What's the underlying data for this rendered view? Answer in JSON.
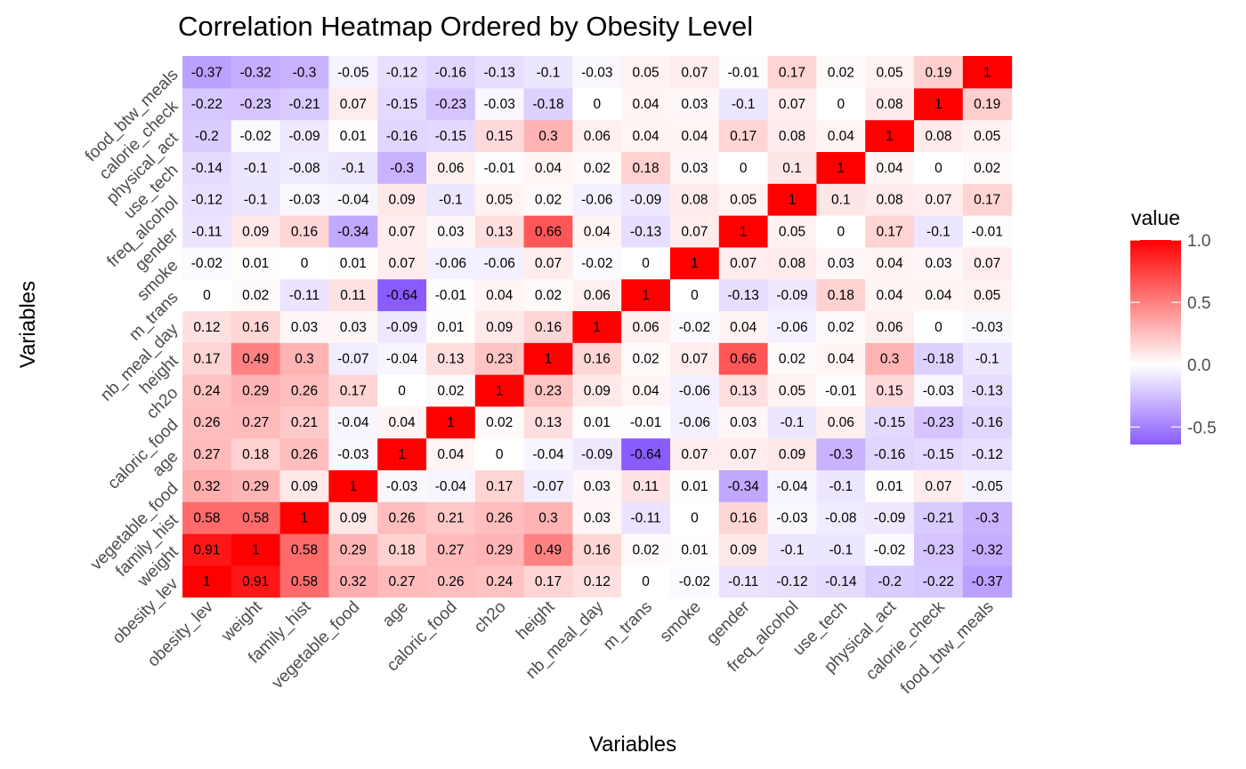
{
  "chart_data": {
    "type": "heatmap",
    "title": "Correlation Heatmap Ordered by Obesity Level",
    "xlabel": "Variables",
    "ylabel": "Variables",
    "variables": [
      "obesity_lev",
      "weight",
      "family_hist",
      "vegetable_food",
      "age",
      "caloric_food",
      "ch2o",
      "height",
      "nb_meal_day",
      "m_trans",
      "smoke",
      "gender",
      "freq_alcohol",
      "use_tech",
      "physical_act",
      "calorie_check",
      "food_btw_meals"
    ],
    "matrix": [
      [
        1,
        0.91,
        0.58,
        0.32,
        0.27,
        0.26,
        0.24,
        0.17,
        0.12,
        0,
        -0.02,
        -0.11,
        -0.12,
        -0.14,
        -0.2,
        -0.22,
        -0.37
      ],
      [
        0.91,
        1,
        0.58,
        0.29,
        0.18,
        0.27,
        0.29,
        0.49,
        0.16,
        0.02,
        0.01,
        0.09,
        -0.1,
        -0.1,
        -0.02,
        -0.23,
        -0.32
      ],
      [
        0.58,
        0.58,
        1,
        0.09,
        0.26,
        0.21,
        0.26,
        0.3,
        0.03,
        -0.11,
        0,
        0.16,
        -0.03,
        -0.08,
        -0.09,
        -0.21,
        -0.3
      ],
      [
        0.32,
        0.29,
        0.09,
        1,
        -0.03,
        -0.04,
        0.17,
        -0.07,
        0.03,
        0.11,
        0.01,
        -0.34,
        -0.04,
        -0.1,
        0.01,
        0.07,
        -0.05
      ],
      [
        0.27,
        0.18,
        0.26,
        -0.03,
        1,
        0.04,
        0,
        -0.04,
        -0.09,
        -0.64,
        0.07,
        0.07,
        0.09,
        -0.3,
        -0.16,
        -0.15,
        -0.12
      ],
      [
        0.26,
        0.27,
        0.21,
        -0.04,
        0.04,
        1,
        0.02,
        0.13,
        0.01,
        -0.01,
        -0.06,
        0.03,
        -0.1,
        0.06,
        -0.15,
        -0.23,
        -0.16
      ],
      [
        0.24,
        0.29,
        0.26,
        0.17,
        0,
        0.02,
        1,
        0.23,
        0.09,
        0.04,
        -0.06,
        0.13,
        0.05,
        -0.01,
        0.15,
        -0.03,
        -0.13
      ],
      [
        0.17,
        0.49,
        0.3,
        -0.07,
        -0.04,
        0.13,
        0.23,
        1,
        0.16,
        0.02,
        0.07,
        0.66,
        0.02,
        0.04,
        0.3,
        -0.18,
        -0.1
      ],
      [
        0.12,
        0.16,
        0.03,
        0.03,
        -0.09,
        0.01,
        0.09,
        0.16,
        1,
        0.06,
        -0.02,
        0.04,
        -0.06,
        0.02,
        0.06,
        0,
        -0.03
      ],
      [
        0,
        0.02,
        -0.11,
        0.11,
        -0.64,
        -0.01,
        0.04,
        0.02,
        0.06,
        1,
        0,
        -0.13,
        -0.09,
        0.18,
        0.04,
        0.04,
        0.05
      ],
      [
        -0.02,
        0.01,
        0,
        0.01,
        0.07,
        -0.06,
        -0.06,
        0.07,
        -0.02,
        0,
        1,
        0.07,
        0.08,
        0.03,
        0.04,
        0.03,
        0.07
      ],
      [
        -0.11,
        0.09,
        0.16,
        -0.34,
        0.07,
        0.03,
        0.13,
        0.66,
        0.04,
        -0.13,
        0.07,
        1,
        0.05,
        0,
        0.17,
        -0.1,
        -0.01
      ],
      [
        -0.12,
        -0.1,
        -0.03,
        -0.04,
        0.09,
        -0.1,
        0.05,
        0.02,
        -0.06,
        -0.09,
        0.08,
        0.05,
        1,
        0.1,
        0.08,
        0.07,
        0.17
      ],
      [
        -0.14,
        -0.1,
        -0.08,
        -0.1,
        -0.3,
        0.06,
        -0.01,
        0.04,
        0.02,
        0.18,
        0.03,
        0,
        0.1,
        1,
        0.04,
        0,
        0.02
      ],
      [
        -0.2,
        -0.02,
        -0.09,
        0.01,
        -0.16,
        -0.15,
        0.15,
        0.3,
        0.06,
        0.04,
        0.04,
        0.17,
        0.08,
        0.04,
        1,
        0.08,
        0.05
      ],
      [
        -0.22,
        -0.23,
        -0.21,
        0.07,
        -0.15,
        -0.23,
        -0.03,
        -0.18,
        0,
        0.04,
        0.03,
        -0.1,
        0.07,
        0,
        0.08,
        1,
        0.19
      ],
      [
        -0.37,
        -0.32,
        -0.3,
        -0.05,
        -0.12,
        -0.16,
        -0.13,
        -0.1,
        -0.03,
        0.05,
        0.07,
        -0.01,
        0.17,
        0.02,
        0.05,
        0.19,
        1
      ]
    ],
    "value_range": [
      -0.64,
      1
    ],
    "legend": {
      "title": "value",
      "ticks": [
        1.0,
        0.5,
        0.0,
        -0.5
      ],
      "tick_labels": [
        "1.0",
        "0.5",
        "0.0",
        "-0.5"
      ],
      "placement": "right"
    },
    "colors": {
      "low": "#8a5cff",
      "mid": "#ffffff",
      "high": "#ff0000"
    },
    "grid": false
  }
}
